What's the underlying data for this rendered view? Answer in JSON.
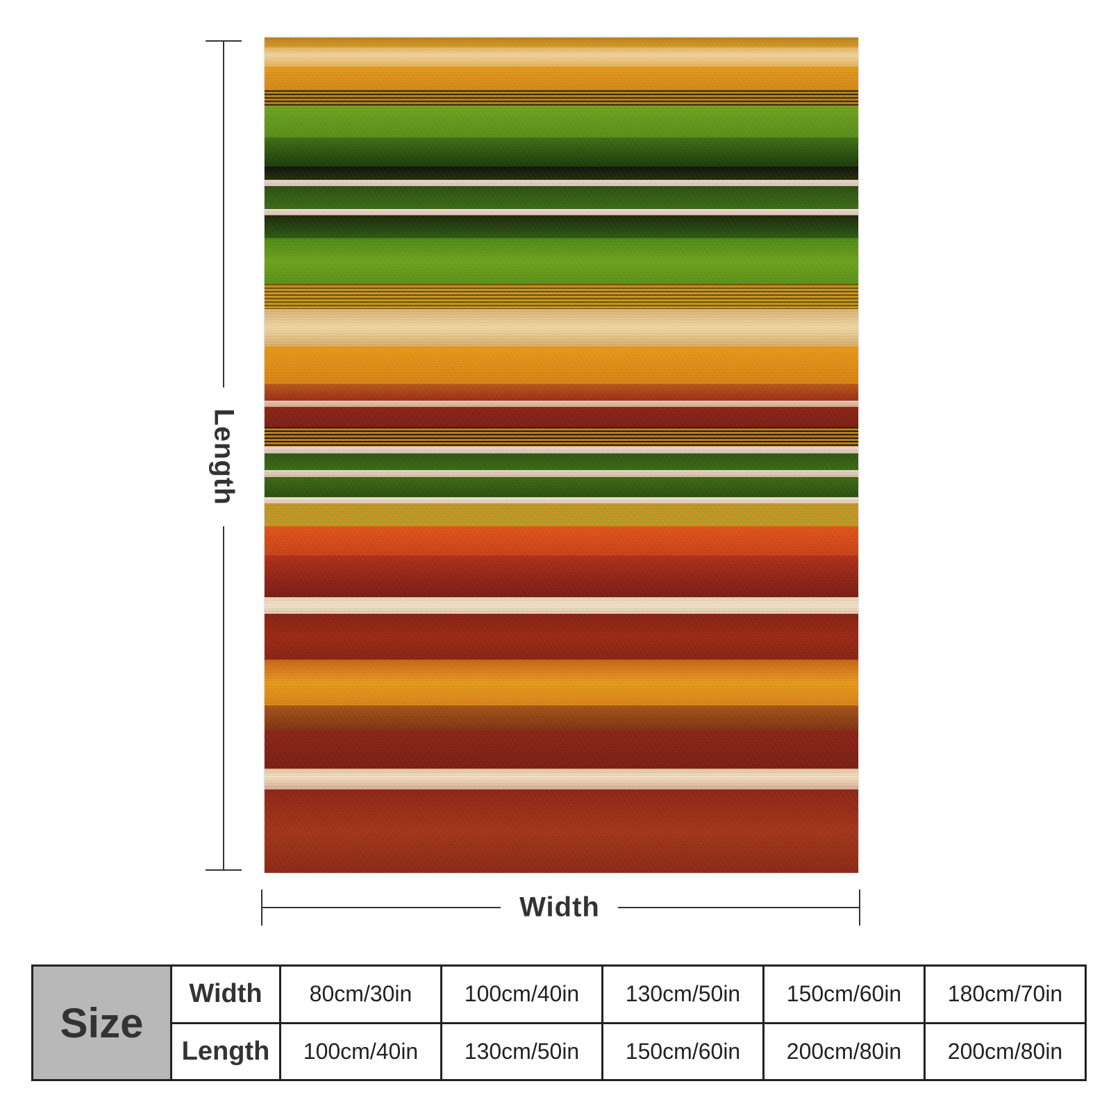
{
  "product": {
    "blanket_stripes": [
      {
        "from": 0.0,
        "to": 0.012,
        "css": "linear-gradient(#b9821f,#d89a2a)"
      },
      {
        "from": 0.012,
        "to": 0.035,
        "css": "linear-gradient(#e4b25a,#f0d49e 40%,#e4b25a)"
      },
      {
        "from": 0.035,
        "to": 0.063,
        "css": "linear-gradient(#e29a1c,#d4891a)"
      },
      {
        "from": 0.063,
        "to": 0.082,
        "css": "repeating-linear-gradient(#3a2a0e 0px,#3a2a0e 2px,#b3821e 2px,#b3821e 5px)"
      },
      {
        "from": 0.082,
        "to": 0.12,
        "css": "linear-gradient(#6fa41f,#5b8e1c)"
      },
      {
        "from": 0.12,
        "to": 0.155,
        "css": "linear-gradient(#3f7016,#1e3a0b)"
      },
      {
        "from": 0.155,
        "to": 0.17,
        "css": "linear-gradient(#111,#24320c)"
      },
      {
        "from": 0.17,
        "to": 0.178,
        "css": "linear-gradient(#e9d7c8,#d9c3b8)"
      },
      {
        "from": 0.178,
        "to": 0.205,
        "css": "linear-gradient(#2c5212,#3c6a18)"
      },
      {
        "from": 0.205,
        "to": 0.213,
        "css": "linear-gradient(#f0dccb,#d8c2b2)"
      },
      {
        "from": 0.213,
        "to": 0.24,
        "css": "linear-gradient(#1d2a0c,#2f5a13)"
      },
      {
        "from": 0.24,
        "to": 0.295,
        "css": "linear-gradient(#4f8a16,#6ea31d 50%,#5a9218)"
      },
      {
        "from": 0.295,
        "to": 0.325,
        "css": "repeating-linear-gradient(#6b5210 0px,#6b5210 2px,#c9961f 2px,#c9961f 5px)"
      },
      {
        "from": 0.325,
        "to": 0.37,
        "css": "linear-gradient(#d9b274,#efd7a5 50%,#d7ad6a)"
      },
      {
        "from": 0.37,
        "to": 0.415,
        "css": "linear-gradient(#e69a1a,#d98315)"
      },
      {
        "from": 0.415,
        "to": 0.435,
        "css": "linear-gradient(#b7591b,#9b2f16)"
      },
      {
        "from": 0.435,
        "to": 0.442,
        "css": "linear-gradient(#e9c9b4,#d4a893)"
      },
      {
        "from": 0.442,
        "to": 0.466,
        "css": "linear-gradient(#8c2516,#7d1f14)"
      },
      {
        "from": 0.466,
        "to": 0.49,
        "css": "repeating-linear-gradient(#2b1c08 0px,#2b1c08 2px,#b87f1b 2px,#b87f1b 5px)"
      },
      {
        "from": 0.49,
        "to": 0.498,
        "css": "linear-gradient(#eadacd,#d6c0b0)"
      },
      {
        "from": 0.498,
        "to": 0.518,
        "css": "linear-gradient(#2f5812,#3b6a17)"
      },
      {
        "from": 0.518,
        "to": 0.526,
        "css": "linear-gradient(#e8d5c1,#d4bca6)"
      },
      {
        "from": 0.526,
        "to": 0.55,
        "css": "linear-gradient(#3d6a15,#2c5010)"
      },
      {
        "from": 0.55,
        "to": 0.558,
        "css": "linear-gradient(#f1e0d3,#e0c8b8)"
      },
      {
        "from": 0.558,
        "to": 0.585,
        "css": "repeating-linear-gradient(45deg,#a7a12a 0px,#a7a12a 3px,#d29022 3px,#d29022 7px)"
      },
      {
        "from": 0.585,
        "to": 0.62,
        "css": "linear-gradient(#e0561a,#c8431a)"
      },
      {
        "from": 0.62,
        "to": 0.67,
        "css": "linear-gradient(#b2301a,#8e2417 60%,#7a1f14)"
      },
      {
        "from": 0.67,
        "to": 0.69,
        "css": "linear-gradient(#e8cfb6,#f3e0c9 50%,#e2c6aa)"
      },
      {
        "from": 0.69,
        "to": 0.745,
        "css": "linear-gradient(#872314,#9a2a15 50%,#8a2414)"
      },
      {
        "from": 0.745,
        "to": 0.8,
        "css": "linear-gradient(#c8661a,#e59a1d 50%,#d9841a)"
      },
      {
        "from": 0.8,
        "to": 0.83,
        "css": "linear-gradient(#a85418,#7d3414)"
      },
      {
        "from": 0.83,
        "to": 0.875,
        "css": "linear-gradient(#8c2516,#7a1f14)"
      },
      {
        "from": 0.875,
        "to": 0.895,
        "css": "linear-gradient(#e4c39c,#f2dfc3 50%,#e1c09a)"
      },
      {
        "from": 0.895,
        "to": 0.9,
        "css": "linear-gradient(#dcb8a8,#d3aa98)"
      },
      {
        "from": 0.9,
        "to": 1.0,
        "css": "linear-gradient(#8e2617,#a3361a 50%,#8b2a16)"
      }
    ]
  },
  "dimensions": {
    "length_label": "Length",
    "width_label": "Width"
  },
  "size_table": {
    "header": "Size",
    "rows": [
      {
        "label": "Width",
        "values": [
          "80cm/30in",
          "100cm/40in",
          "130cm/50in",
          "150cm/60in",
          "180cm/70in"
        ]
      },
      {
        "label": "Length",
        "values": [
          "100cm/40in",
          "130cm/50in",
          "150cm/60in",
          "200cm/80in",
          "200cm/80in"
        ]
      }
    ]
  }
}
